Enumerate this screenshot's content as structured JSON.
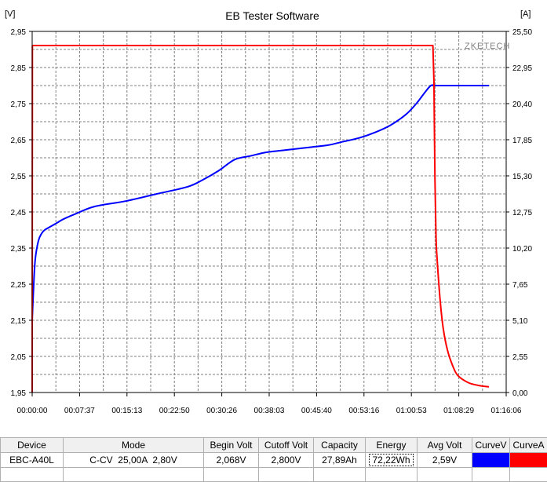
{
  "window": {
    "title": "EB Tester Software"
  },
  "chart_data": {
    "type": "line",
    "title": "EB Tester Software",
    "watermark": "ZKETECH",
    "xlabel": "",
    "ylabel_left": "[V]",
    "ylabel_right": "[A]",
    "x_unit": "seconds",
    "xlim": [
      0,
      4566
    ],
    "ylim_left": [
      1.95,
      2.95
    ],
    "ylim_right": [
      0.0,
      25.5
    ],
    "x_tick_labels": [
      "00:00:00",
      "00:07:37",
      "00:15:13",
      "00:22:50",
      "00:30:26",
      "00:38:03",
      "00:45:40",
      "00:53:16",
      "01:00:53",
      "01:08:29",
      "01:16:06"
    ],
    "y_left_tick_labels": [
      "2,95",
      "2,85",
      "2,75",
      "2,65",
      "2,55",
      "2,45",
      "2,35",
      "2,25",
      "2,15",
      "2,05",
      "1,95"
    ],
    "y_right_tick_labels": [
      "25,50",
      "22,95",
      "20,40",
      "17,85",
      "15,30",
      "12,75",
      "10,20",
      "7,65",
      "5,10",
      "2,55",
      "0,00"
    ],
    "grid": true,
    "series": [
      {
        "name": "CurveV",
        "color": "#0000ff",
        "axis": "left",
        "x": [
          0,
          15,
          30,
          60,
          90,
          120,
          180,
          240,
          300,
          420,
          600,
          900,
          1200,
          1500,
          1650,
          1800,
          1950,
          2100,
          2250,
          2400,
          2550,
          2700,
          2850,
          3000,
          3150,
          3300,
          3450,
          3600,
          3700,
          3780,
          3840,
          3880,
          3900,
          4400
        ],
        "y": [
          2.15,
          2.25,
          2.32,
          2.37,
          2.39,
          2.4,
          2.41,
          2.42,
          2.43,
          2.445,
          2.465,
          2.48,
          2.5,
          2.52,
          2.54,
          2.565,
          2.595,
          2.605,
          2.615,
          2.62,
          2.625,
          2.63,
          2.635,
          2.645,
          2.655,
          2.67,
          2.69,
          2.72,
          2.75,
          2.78,
          2.8,
          2.8,
          2.8,
          2.8
        ]
      },
      {
        "name": "CurveA",
        "color": "#ff0000",
        "axis": "right",
        "x": [
          0,
          2,
          3860,
          3870,
          3880,
          3890,
          3900,
          3930,
          3960,
          4000,
          4050,
          4100,
          4200,
          4300,
          4400
        ],
        "y": [
          0.0,
          24.5,
          24.5,
          22.0,
          15.0,
          11.0,
          9.5,
          6.5,
          4.5,
          3.0,
          1.9,
          1.2,
          0.7,
          0.5,
          0.4
        ]
      }
    ]
  },
  "info_table": {
    "headers": [
      "Device",
      "Mode",
      "Begin Volt",
      "Cutoff Volt",
      "Capacity",
      "Energy",
      "Avg Volt",
      "CurveV",
      "CurveA"
    ],
    "row": {
      "device": "EBC-A40L",
      "mode": "C-CV  25,00A  2,80V",
      "begin_volt": "2,068V",
      "cutoff_volt": "2,800V",
      "capacity": "27,89Ah",
      "energy": "72,22Wh",
      "avg_volt": "2,59V",
      "curve_v_color": "#0000ff",
      "curve_a_color": "#ff0000"
    }
  }
}
